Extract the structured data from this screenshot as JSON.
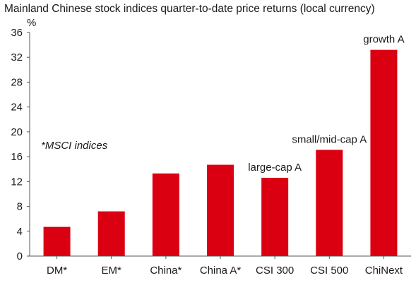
{
  "chart_data": {
    "type": "bar",
    "title": "Mainland Chinese stock indices quarter-to-date price returns (local currency)",
    "y_unit": "%",
    "categories": [
      "DM*",
      "EM*",
      "China*",
      "China A*",
      "CSI 300",
      "CSI 500",
      "ChiNext"
    ],
    "values": [
      4.7,
      7.2,
      13.3,
      14.7,
      12.6,
      17.1,
      33.2
    ],
    "ylim": [
      0,
      36
    ],
    "y_ticks": [
      0,
      4,
      8,
      12,
      16,
      20,
      24,
      28,
      32,
      36
    ],
    "grid": false,
    "bar_color": "#db0011",
    "annotations": [
      {
        "category": "CSI 300",
        "text": "large-cap A"
      },
      {
        "category": "CSI 500",
        "text": "small/mid-cap A"
      },
      {
        "category": "ChiNext",
        "text": "growth A"
      }
    ],
    "note": "*MSCI indices"
  }
}
